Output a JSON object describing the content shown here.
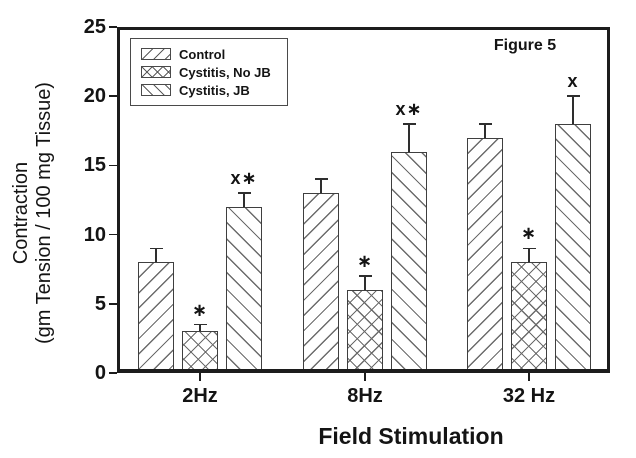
{
  "figure_label": "Figure 5",
  "chart_data": {
    "type": "bar",
    "title": "Figure 5",
    "xlabel": "Field Stimulation",
    "ylabel": "Contraction (gm Tension / 100 mg Tissue)",
    "ylabel_lines": [
      "Contraction",
      "(gm Tension / 100 mg Tissue)"
    ],
    "ylim": [
      0,
      25
    ],
    "y_ticks": [
      0,
      5,
      10,
      15,
      20,
      25
    ],
    "categories": [
      "2Hz",
      "8Hz",
      "32 Hz"
    ],
    "series": [
      {
        "name": "Control",
        "hatch": "forward-diagonal",
        "values": [
          8,
          13,
          17
        ],
        "errors": [
          1,
          1,
          1
        ],
        "annotations": [
          "",
          "",
          ""
        ]
      },
      {
        "name": "Cystitis, No JB",
        "hatch": "crosshatch",
        "values": [
          3,
          6,
          8
        ],
        "errors": [
          0.5,
          1,
          1
        ],
        "annotations": [
          "*",
          "*",
          "*"
        ]
      },
      {
        "name": "Cystitis, JB",
        "hatch": "backward-diagonal",
        "values": [
          12,
          16,
          18
        ],
        "errors": [
          1,
          2,
          2
        ],
        "annotations": [
          "x*",
          "x*",
          "x"
        ]
      }
    ],
    "legend_position": "top-left",
    "grid": false,
    "bar_fill": "#ffffff",
    "hatch_color": "#6b6b6b",
    "axis_color": "#1c1c1c",
    "text_color": "#141414",
    "background": "#ffffff"
  }
}
